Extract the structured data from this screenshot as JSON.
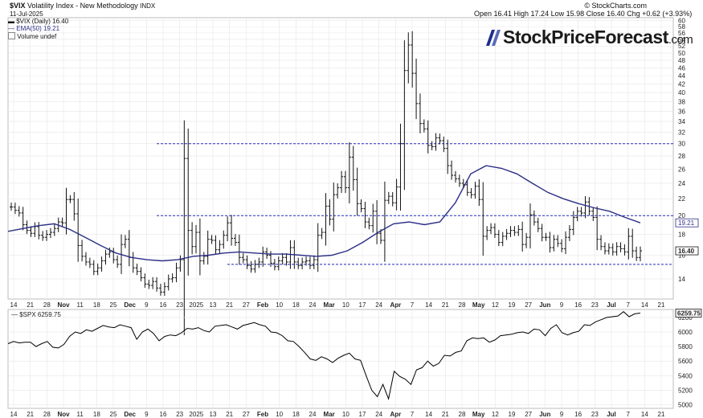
{
  "header": {
    "symbol": "$VIX",
    "name": "Volatility Index - New Methodology",
    "exchange": "INDX",
    "date": "11-Jul-2025",
    "ohlc": "Open 16.41  High 17.24  Low 15.98  Close 16.40  Chg +0.62 (+3.93%)",
    "credit": "© StockCharts.com"
  },
  "legend": {
    "vix": "$VIX (Daily) 16.40",
    "ema": "EMA(50) 19.21",
    "volume": "Volume undef"
  },
  "brand": {
    "name": "StockPriceForecast",
    "suffix": ".com"
  },
  "colors": {
    "price_bars": "#111111",
    "ema": "#2b2e86",
    "dashed": "#1f2fb8",
    "spx": "#000000",
    "grid": "#e6e6e6"
  },
  "chart_data": [
    {
      "type": "ohlc",
      "title": "$VIX Volatility Index - New Methodology",
      "ylim": [
        12.5,
        61
      ],
      "y_scale": "log",
      "y_ticks": [
        14,
        16,
        18,
        20,
        22,
        24,
        26,
        28,
        30,
        32,
        34,
        36,
        38,
        40,
        42,
        44,
        46,
        48,
        50,
        52,
        54,
        56,
        58,
        60
      ],
      "last_value_label": "16.40",
      "ema_value_label": "19.21",
      "reference_lines": [
        30,
        20,
        15.2
      ],
      "date_range": [
        "2024-10-14",
        "2025-07-11"
      ],
      "x_ticks": [
        "14",
        "21",
        "28",
        "Nov",
        "11",
        "18",
        "25",
        "Dec",
        "9",
        "16",
        "23",
        "2025",
        "13",
        "21",
        "27",
        "Feb",
        "10",
        "18",
        "24",
        "Mar",
        "10",
        "17",
        "24",
        "Apr",
        "7",
        "14",
        "21",
        "28",
        "May",
        "12",
        "19",
        "27",
        "Jun",
        "9",
        "16",
        "23",
        "Jul",
        "7",
        "14",
        "21"
      ],
      "series": [
        {
          "name": "$VIX (Daily)",
          "values": [
            21.0,
            20.6,
            20.3,
            19.0,
            18.4,
            18.1,
            18.8,
            17.9,
            17.7,
            18.0,
            18.2,
            18.6,
            19.3,
            19.2,
            21.9,
            21.9,
            20.2,
            16.9,
            15.9,
            15.4,
            15.2,
            14.6,
            14.9,
            15.5,
            16.1,
            16.3,
            15.6,
            15.2,
            17.0,
            17.5,
            15.8,
            14.9,
            14.6,
            14.1,
            13.6,
            13.5,
            13.8,
            13.3,
            13.0,
            13.4,
            14.0,
            14.1,
            14.9,
            15.6,
            27.6,
            18.4,
            16.8,
            18.2,
            15.5,
            15.9,
            17.5,
            17.4,
            16.5,
            17.0,
            17.9,
            19.2,
            17.6,
            17.2,
            15.8,
            15.6,
            15.1,
            14.8,
            15.2,
            15.4,
            16.3,
            16.0,
            15.3,
            15.0,
            15.5,
            15.8,
            15.4,
            16.7,
            15.4,
            15.1,
            15.4,
            15.5,
            15.1,
            15.6,
            17.9,
            18.2,
            21.1,
            19.6,
            22.5,
            23.4,
            24.9,
            23.4,
            27.8,
            24.5,
            21.4,
            20.8,
            19.3,
            18.9,
            20.5,
            18.1,
            17.4,
            21.8,
            22.3,
            21.5,
            23.5,
            30.0,
            45.3,
            52.3,
            44.6,
            37.6,
            33.6,
            32.6,
            29.7,
            29.5,
            31.0,
            30.5,
            29.2,
            26.5,
            25.1,
            24.6,
            24.0,
            23.8,
            22.8,
            22.5,
            23.6,
            21.9,
            17.8,
            18.4,
            18.7,
            18.0,
            17.2,
            17.8,
            18.1,
            18.4,
            18.2,
            18.5,
            17.0,
            17.7,
            20.1,
            19.3,
            18.6,
            17.7,
            17.7,
            16.7,
            17.5,
            17.1,
            16.6,
            17.7,
            18.5,
            19.8,
            20.5,
            20.3,
            21.6,
            20.5,
            19.8,
            17.5,
            16.8,
            16.4,
            16.7,
            16.3,
            16.8,
            16.6,
            16.3,
            17.8,
            16.4,
            15.8,
            16.4
          ]
        },
        {
          "name": "EMA(50)",
          "values": [
            18.3,
            18.6,
            18.9,
            19.1,
            18.5,
            17.7,
            16.9,
            16.2,
            15.8,
            15.6,
            15.5,
            15.6,
            15.9,
            16.0,
            16.2,
            16.3,
            16.2,
            16.1,
            16.1,
            16.0,
            15.9,
            16.0,
            16.4,
            17.2,
            18.2,
            19.1,
            19.3,
            19.0,
            19.3,
            21.5,
            25.3,
            26.5,
            26.1,
            25.3,
            24.0,
            22.8,
            22.0,
            21.4,
            20.9,
            20.5,
            19.8,
            19.2
          ]
        }
      ]
    },
    {
      "type": "line",
      "title": "$SPX 6259.75",
      "ylim": [
        4950,
        6310
      ],
      "y_ticks": [
        5000,
        5200,
        5400,
        5600,
        5800,
        6000,
        6200
      ],
      "last_value_label": "6259.75",
      "series": [
        {
          "name": "$SPX",
          "values": [
            5840,
            5870,
            5850,
            5860,
            5860,
            5800,
            5840,
            5870,
            5790,
            5780,
            5830,
            5940,
            6000,
            5980,
            6030,
            6010,
            6050,
            6090,
            6070,
            6060,
            6100,
            6080,
            6060,
            5900,
            6000,
            6040,
            5980,
            5880,
            5940,
            5960,
            5950,
            5990,
            6050,
            6040,
            6060,
            6020,
            6000,
            6080,
            6090,
            6100,
            6070,
            6040,
            6090,
            6110,
            6130,
            6100,
            6080,
            6000,
            5990,
            5950,
            5880,
            5870,
            5800,
            5720,
            5630,
            5610,
            5660,
            5630,
            5580,
            5640,
            5680,
            5710,
            5630,
            5610,
            5400,
            5200,
            5110,
            5280,
            5080,
            5460,
            5390,
            5350,
            5280,
            5480,
            5510,
            5600,
            5530,
            5570,
            5680,
            5670,
            5720,
            5740,
            5880,
            5920,
            5910,
            5920,
            5860,
            5890,
            5950,
            5960,
            5970,
            5990,
            6000,
            5980,
            6040,
            6030,
            5950,
            6050,
            6100,
            5990,
            5960,
            5990,
            6010,
            6100,
            6090,
            6140,
            6170,
            6200,
            6210,
            6220,
            6280,
            6210,
            6250,
            6260
          ]
        }
      ]
    }
  ]
}
